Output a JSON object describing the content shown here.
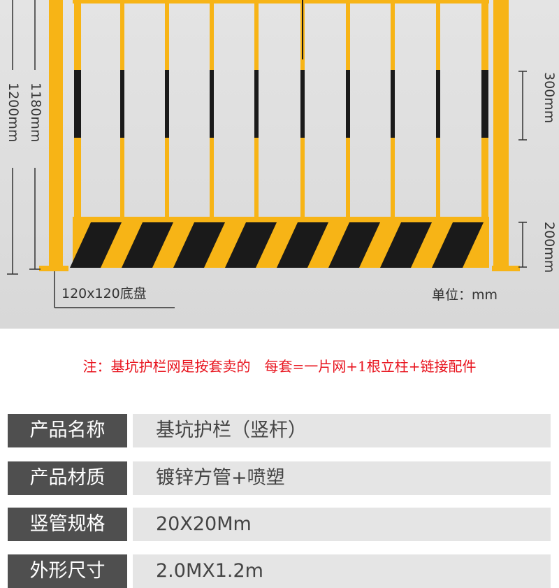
{
  "diagram": {
    "dim_height_inner": "1180mm",
    "dim_height_total": "1200mm",
    "dim_stripe": "300mm",
    "dim_kickplate": "200mm",
    "base_label": "120x120底盘",
    "unit_label": "单位：mm",
    "colors": {
      "yellow": "#f7b416",
      "black": "#1a1a1a"
    }
  },
  "note": "注：基坑护栏网是按套卖的　每套=一片网+1根立柱+链接配件",
  "note_color": "#e8141e",
  "specs": [
    {
      "label": "产品名称",
      "value": "基坑护栏（竖杆）"
    },
    {
      "label": "产品材质",
      "value": "镀锌方管+喷塑"
    },
    {
      "label": "竖管规格",
      "value": "20X20Mm"
    },
    {
      "label": "外形尺寸",
      "value": "2.0MX1.2m"
    }
  ]
}
